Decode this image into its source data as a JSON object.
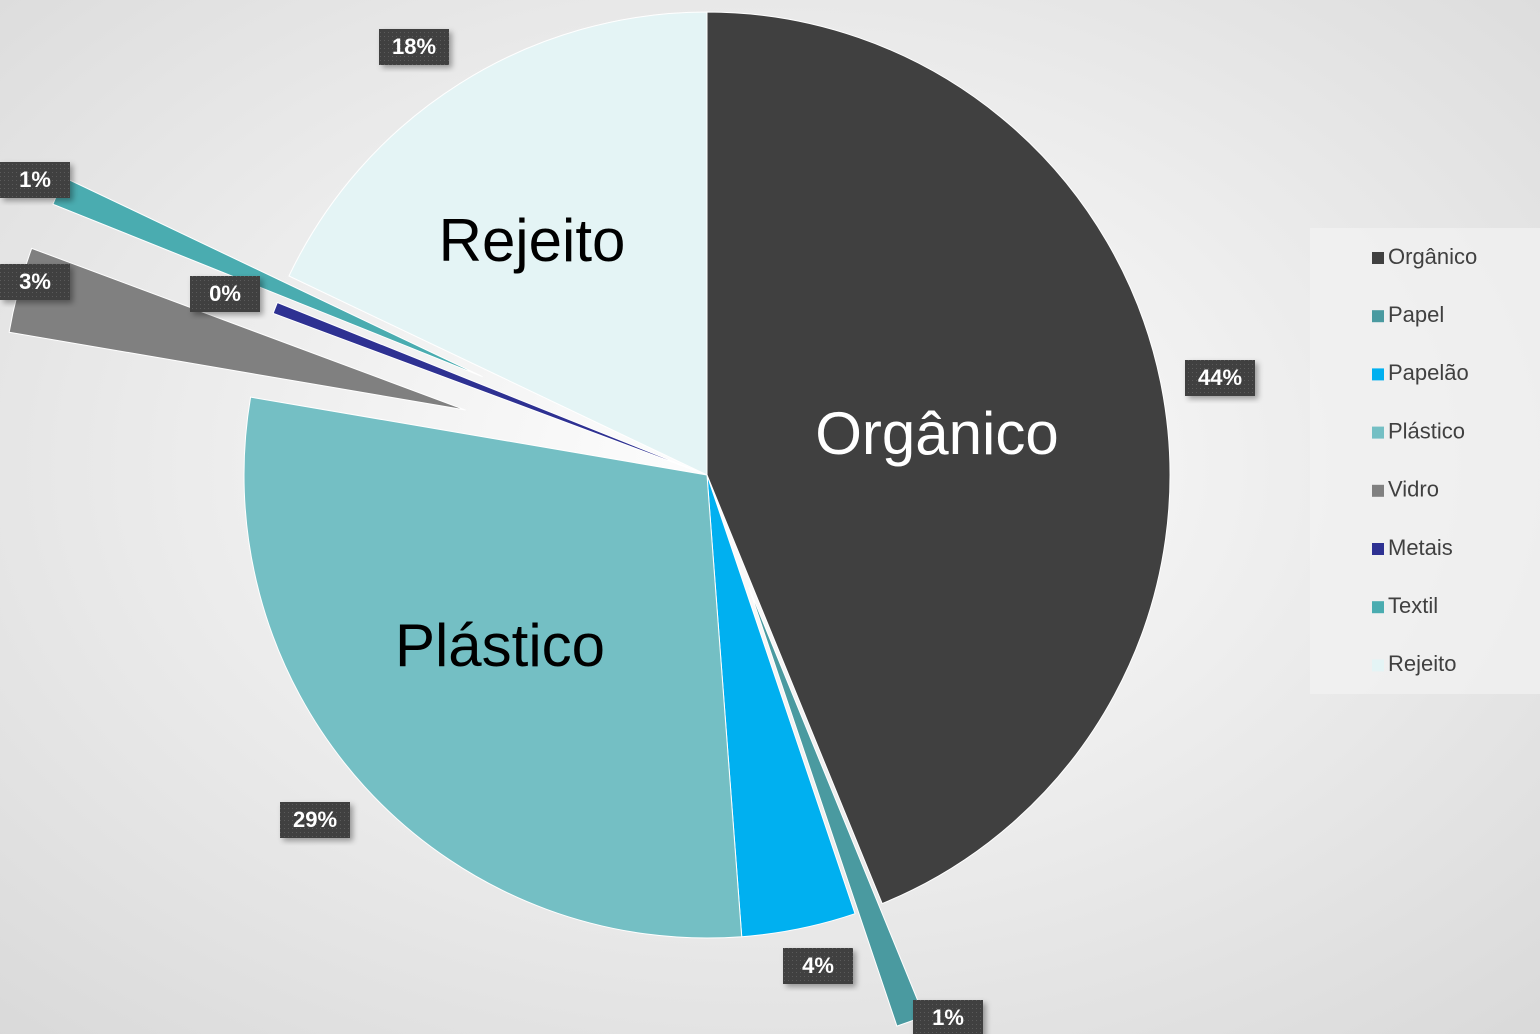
{
  "chart_data": {
    "type": "pie",
    "categories": [
      "Orgânico",
      "Papel",
      "Papelão",
      "Plástico",
      "Vidro",
      "Metais",
      "Textil",
      "Rejeito"
    ],
    "values": [
      44,
      1,
      4,
      29,
      3,
      0.4,
      1,
      18
    ],
    "value_labels": [
      "44%",
      "1%",
      "4%",
      "29%",
      "3%",
      "0%",
      "1%",
      "18%"
    ],
    "colors": [
      "#404040",
      "#4a9aa0",
      "#00b0f0",
      "#74bfc4",
      "#808080",
      "#2e3192",
      "#4aacb0",
      "#e4f4f5"
    ],
    "legend": "right"
  }
}
